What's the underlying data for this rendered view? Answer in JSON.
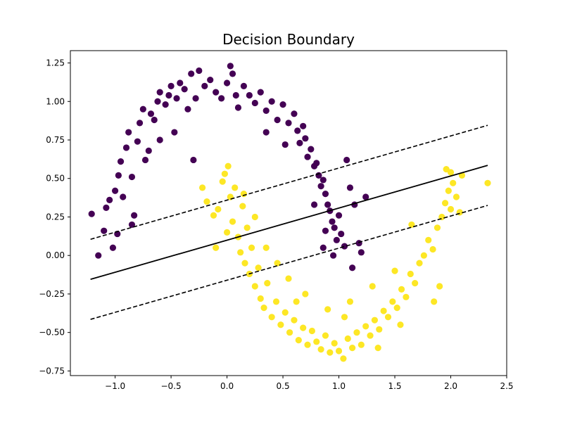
{
  "chart_data": {
    "type": "scatter",
    "title": "Decision Boundary",
    "xlabel": "",
    "ylabel": "",
    "xlim": [
      -1.4,
      2.5
    ],
    "ylim": [
      -0.78,
      1.33
    ],
    "xticks": [
      -1.0,
      -0.5,
      0.0,
      0.5,
      1.0,
      1.5,
      2.0,
      2.5
    ],
    "xtick_labels": [
      "−1.0",
      "−0.5",
      "0.0",
      "0.5",
      "1.0",
      "1.5",
      "2.0",
      "2.5"
    ],
    "yticks": [
      -0.75,
      -0.5,
      -0.25,
      0.0,
      0.25,
      0.5,
      0.75,
      1.0,
      1.25
    ],
    "ytick_labels": [
      "−0.75",
      "−0.50",
      "−0.25",
      "0.00",
      "0.25",
      "0.50",
      "0.75",
      "1.00",
      "1.25"
    ],
    "grid": false,
    "colors": {
      "class_0": "#440154",
      "class_1": "#fde725",
      "line": "#000000"
    },
    "series": [
      {
        "class": 0,
        "color": "#440154",
        "points": [
          [
            -1.21,
            0.27
          ],
          [
            -1.15,
            0.0
          ],
          [
            -1.1,
            0.16
          ],
          [
            -1.08,
            0.31
          ],
          [
            -1.05,
            0.36
          ],
          [
            -1.02,
            0.05
          ],
          [
            -0.98,
            0.14
          ],
          [
            -1.0,
            0.42
          ],
          [
            -0.97,
            0.52
          ],
          [
            -0.95,
            0.61
          ],
          [
            -0.93,
            0.38
          ],
          [
            -0.9,
            0.7
          ],
          [
            -0.88,
            0.8
          ],
          [
            -0.85,
            0.51
          ],
          [
            -0.83,
            0.26
          ],
          [
            -0.8,
            0.74
          ],
          [
            -0.78,
            0.86
          ],
          [
            -0.75,
            0.95
          ],
          [
            -0.73,
            0.62
          ],
          [
            -0.7,
            0.68
          ],
          [
            -0.68,
            0.92
          ],
          [
            -0.65,
            0.88
          ],
          [
            -0.62,
            1.0
          ],
          [
            -0.6,
            1.06
          ],
          [
            -0.55,
            0.98
          ],
          [
            -0.52,
            1.04
          ],
          [
            -0.5,
            1.1
          ],
          [
            -0.47,
            0.8
          ],
          [
            -0.45,
            1.02
          ],
          [
            -0.42,
            1.12
          ],
          [
            -0.38,
            1.08
          ],
          [
            -0.35,
            0.95
          ],
          [
            -0.32,
            1.18
          ],
          [
            -0.28,
            1.02
          ],
          [
            -0.25,
            1.2
          ],
          [
            -0.2,
            1.1
          ],
          [
            -0.15,
            1.14
          ],
          [
            -0.1,
            1.06
          ],
          [
            -0.05,
            1.02
          ],
          [
            0.0,
            1.12
          ],
          [
            0.03,
            1.23
          ],
          [
            0.05,
            1.18
          ],
          [
            0.08,
            1.04
          ],
          [
            0.1,
            0.96
          ],
          [
            0.15,
            1.1
          ],
          [
            0.2,
            1.04
          ],
          [
            0.25,
            0.99
          ],
          [
            0.3,
            1.06
          ],
          [
            0.35,
            0.94
          ],
          [
            0.4,
            1.0
          ],
          [
            0.45,
            0.88
          ],
          [
            0.5,
            0.98
          ],
          [
            0.55,
            0.86
          ],
          [
            0.6,
            0.92
          ],
          [
            0.63,
            0.81
          ],
          [
            0.65,
            0.73
          ],
          [
            0.68,
            0.84
          ],
          [
            0.7,
            0.76
          ],
          [
            0.72,
            0.64
          ],
          [
            0.75,
            0.69
          ],
          [
            0.78,
            0.58
          ],
          [
            0.8,
            0.6
          ],
          [
            0.82,
            0.52
          ],
          [
            0.84,
            0.45
          ],
          [
            0.86,
            0.49
          ],
          [
            0.88,
            0.4
          ],
          [
            0.9,
            0.33
          ],
          [
            0.92,
            0.29
          ],
          [
            0.94,
            0.22
          ],
          [
            0.96,
            0.18
          ],
          [
            0.98,
            0.1
          ],
          [
            1.0,
            0.26
          ],
          [
            1.02,
            0.14
          ],
          [
            1.05,
            0.06
          ],
          [
            1.07,
            0.62
          ],
          [
            1.1,
            0.44
          ],
          [
            1.14,
            0.33
          ],
          [
            1.18,
            0.08
          ],
          [
            1.2,
            0.02
          ],
          [
            1.24,
            0.38
          ],
          [
            -0.3,
            0.62
          ],
          [
            -0.6,
            0.75
          ],
          [
            -0.85,
            0.2
          ],
          [
            0.35,
            0.8
          ],
          [
            0.52,
            0.72
          ],
          [
            0.78,
            0.33
          ],
          [
            0.95,
            0.0
          ],
          [
            0.86,
            0.05
          ],
          [
            1.12,
            -0.08
          ],
          [
            0.88,
            0.16
          ]
        ]
      },
      {
        "class": 1,
        "color": "#fde725",
        "points": [
          [
            -0.22,
            0.44
          ],
          [
            -0.18,
            0.35
          ],
          [
            -0.12,
            0.26
          ],
          [
            -0.08,
            0.3
          ],
          [
            -0.04,
            0.48
          ],
          [
            -0.02,
            0.53
          ],
          [
            0.01,
            0.58
          ],
          [
            0.03,
            0.38
          ],
          [
            0.05,
            0.22
          ],
          [
            0.07,
            0.44
          ],
          [
            0.1,
            0.12
          ],
          [
            0.12,
            0.02
          ],
          [
            0.14,
            0.32
          ],
          [
            0.16,
            -0.05
          ],
          [
            0.18,
            0.18
          ],
          [
            0.2,
            -0.12
          ],
          [
            0.22,
            0.05
          ],
          [
            0.25,
            -0.2
          ],
          [
            0.28,
            -0.08
          ],
          [
            0.3,
            -0.28
          ],
          [
            0.33,
            -0.34
          ],
          [
            0.36,
            -0.18
          ],
          [
            0.4,
            -0.4
          ],
          [
            0.44,
            -0.3
          ],
          [
            0.48,
            -0.45
          ],
          [
            0.52,
            -0.37
          ],
          [
            0.56,
            -0.5
          ],
          [
            0.6,
            -0.42
          ],
          [
            0.64,
            -0.55
          ],
          [
            0.68,
            -0.47
          ],
          [
            0.72,
            -0.58
          ],
          [
            0.76,
            -0.49
          ],
          [
            0.8,
            -0.56
          ],
          [
            0.84,
            -0.61
          ],
          [
            0.88,
            -0.52
          ],
          [
            0.92,
            -0.63
          ],
          [
            0.96,
            -0.57
          ],
          [
            1.0,
            -0.62
          ],
          [
            1.04,
            -0.67
          ],
          [
            1.08,
            -0.54
          ],
          [
            1.12,
            -0.6
          ],
          [
            1.16,
            -0.5
          ],
          [
            1.2,
            -0.58
          ],
          [
            1.24,
            -0.46
          ],
          [
            1.28,
            -0.52
          ],
          [
            1.32,
            -0.42
          ],
          [
            1.36,
            -0.48
          ],
          [
            1.4,
            -0.36
          ],
          [
            1.44,
            -0.4
          ],
          [
            1.48,
            -0.3
          ],
          [
            1.52,
            -0.34
          ],
          [
            1.56,
            -0.22
          ],
          [
            1.6,
            -0.27
          ],
          [
            1.64,
            -0.12
          ],
          [
            1.68,
            -0.18
          ],
          [
            1.72,
            -0.05
          ],
          [
            1.76,
            0.0
          ],
          [
            1.8,
            0.1
          ],
          [
            1.84,
            0.04
          ],
          [
            1.88,
            0.18
          ],
          [
            1.92,
            0.25
          ],
          [
            1.95,
            0.34
          ],
          [
            1.98,
            0.42
          ],
          [
            2.0,
            0.3
          ],
          [
            2.02,
            0.47
          ],
          [
            2.05,
            0.38
          ],
          [
            2.08,
            0.28
          ],
          [
            2.1,
            0.52
          ],
          [
            2.33,
            0.47
          ],
          [
            1.96,
            0.56
          ],
          [
            2.0,
            0.54
          ],
          [
            1.65,
            0.2
          ],
          [
            1.5,
            -0.1
          ],
          [
            1.3,
            -0.2
          ],
          [
            1.1,
            -0.3
          ],
          [
            0.9,
            -0.35
          ],
          [
            0.7,
            -0.25
          ],
          [
            0.55,
            -0.15
          ],
          [
            0.35,
            0.05
          ],
          [
            0.25,
            0.25
          ],
          [
            0.45,
            -0.05
          ],
          [
            0.62,
            -0.3
          ],
          [
            1.05,
            -0.4
          ],
          [
            1.35,
            -0.6
          ],
          [
            1.55,
            -0.45
          ],
          [
            1.85,
            -0.3
          ],
          [
            1.9,
            -0.2
          ],
          [
            0.15,
            0.4
          ],
          [
            0.0,
            0.15
          ],
          [
            -0.1,
            0.05
          ]
        ]
      }
    ],
    "lines": [
      {
        "name": "",
        "style": "solid",
        "x": [
          -1.22,
          2.33
        ],
        "y": [
          -0.155,
          0.585
        ]
      },
      {
        "name": "",
        "style": "dashed",
        "x": [
          -1.22,
          2.33
        ],
        "y": [
          0.105,
          0.845
        ]
      },
      {
        "name": "",
        "style": "dashed",
        "x": [
          -1.22,
          2.33
        ],
        "y": [
          -0.415,
          0.325
        ]
      }
    ]
  }
}
